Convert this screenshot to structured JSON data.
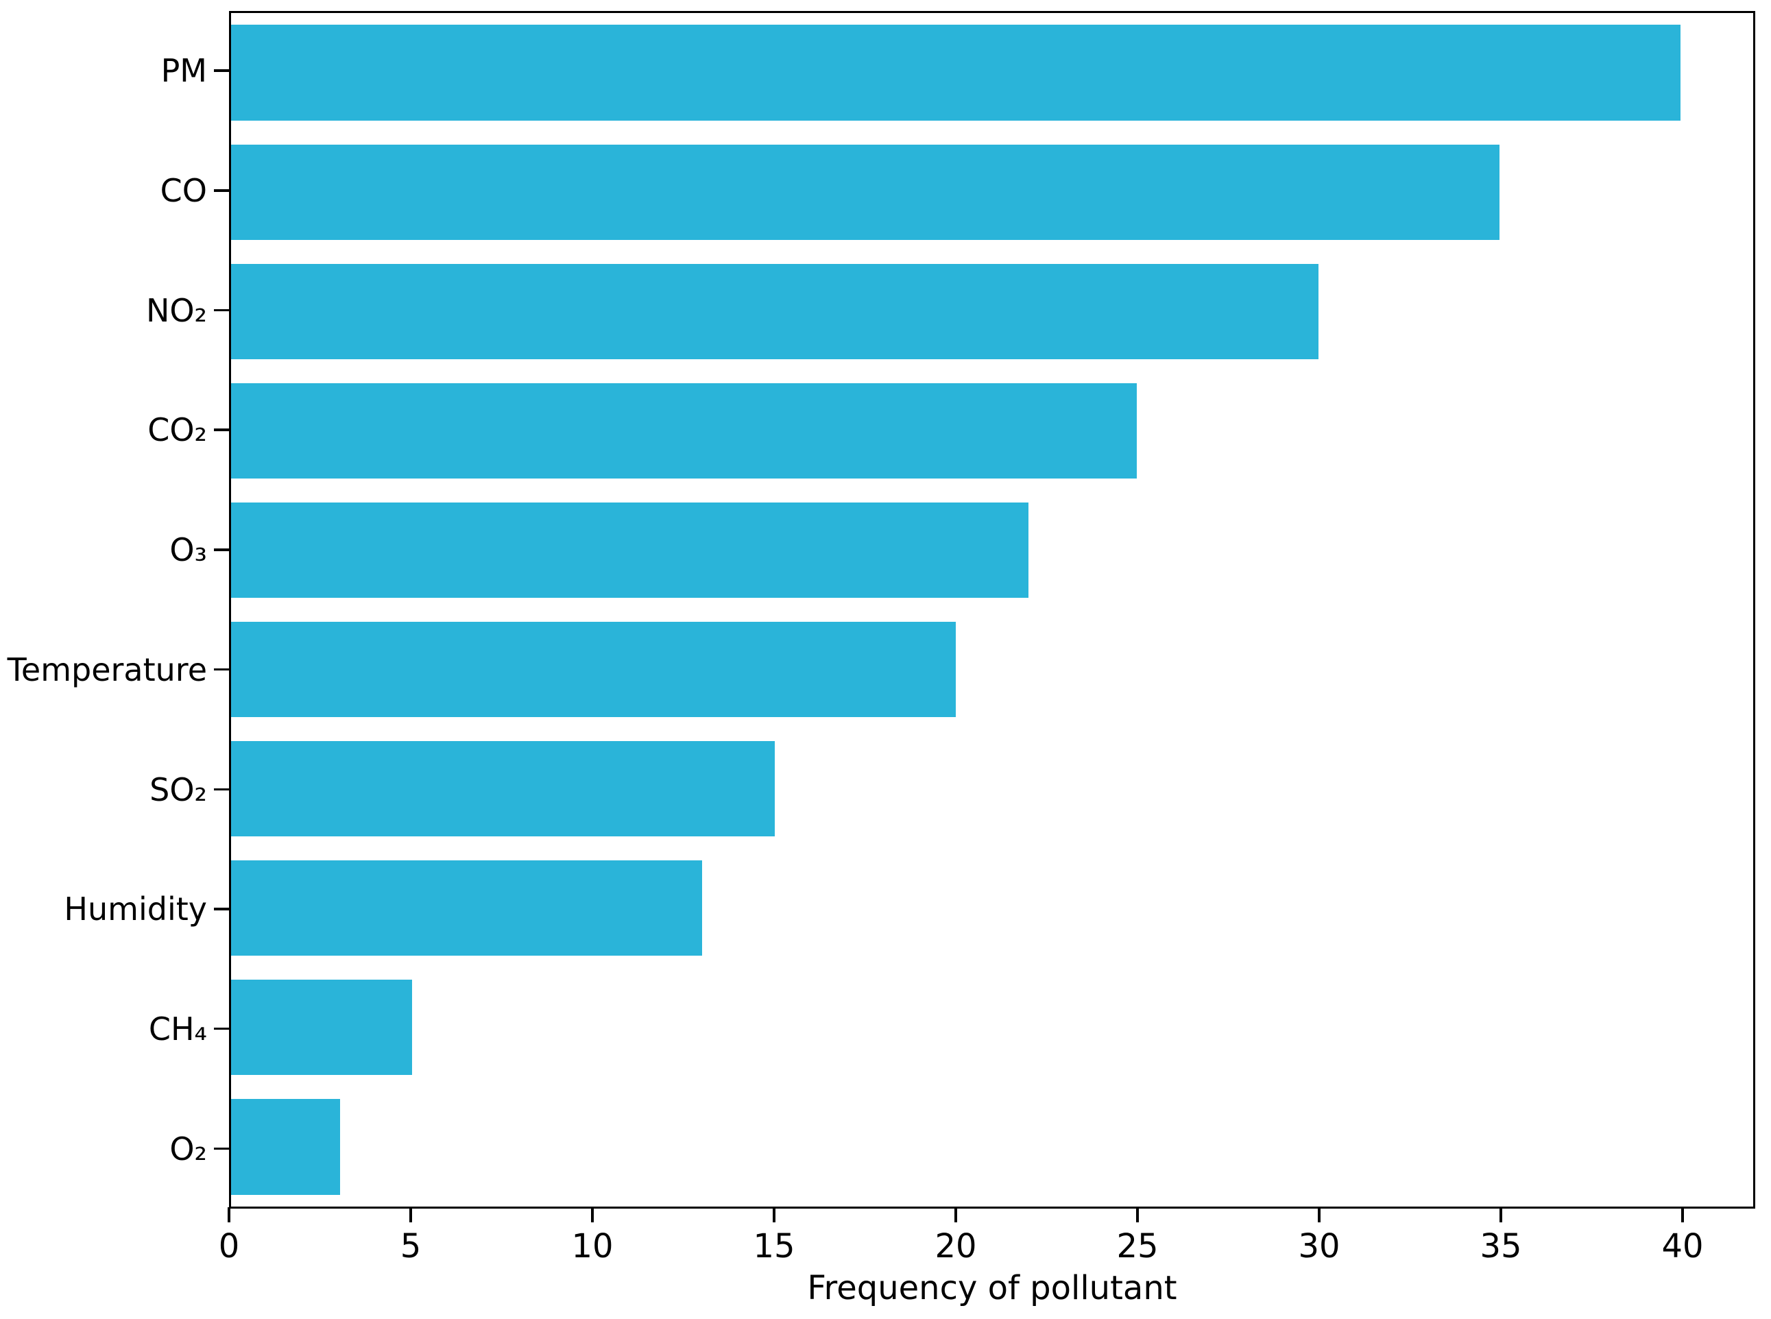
{
  "figure": {
    "background": "#ffffff"
  },
  "chart_data": {
    "type": "bar",
    "orientation": "horizontal",
    "title": "",
    "xlabel": "Frequency of pollutant",
    "ylabel": "",
    "categories": [
      "PM",
      "CO",
      "NO₂",
      "CO₂",
      "O₃",
      "Temperature",
      "SO₂",
      "Humidity",
      "CH₄",
      "O₂"
    ],
    "values": [
      40,
      35,
      30,
      25,
      22,
      20,
      15,
      13,
      5,
      3
    ],
    "xlim": [
      0,
      42
    ],
    "xticks": [
      0,
      5,
      10,
      15,
      20,
      25,
      30,
      35,
      40
    ],
    "bar_color": "#2ab4d9",
    "axis_color": "#000000",
    "text_color": "#000000",
    "bar_height_ratio": 0.8,
    "grid": false,
    "legend": null
  }
}
